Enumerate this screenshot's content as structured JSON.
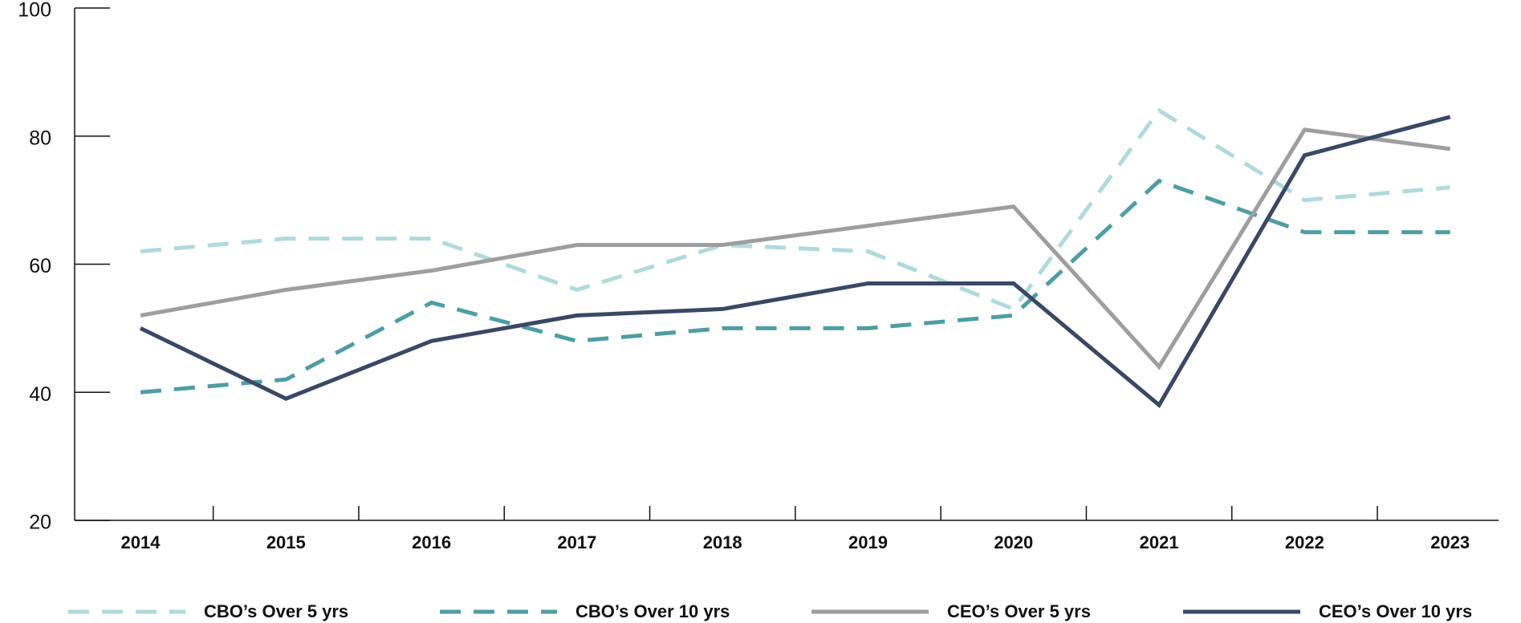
{
  "chart_data": {
    "type": "line",
    "categories": [
      "2014",
      "2015",
      "2016",
      "2017",
      "2018",
      "2019",
      "2020",
      "2021",
      "2022",
      "2023"
    ],
    "series": [
      {
        "name": "CBO’s Over 5 yrs",
        "color": "#b0dadb",
        "style": "dashed",
        "values": [
          62,
          64,
          64,
          56,
          63,
          62,
          53,
          84,
          70,
          72
        ]
      },
      {
        "name": "CBO’s Over 10 yrs",
        "color": "#4e9ea3",
        "style": "dashed",
        "values": [
          40,
          42,
          54,
          48,
          50,
          50,
          52,
          73,
          65,
          65
        ]
      },
      {
        "name": "CEO’s Over 5 yrs",
        "color": "#9e9e9f",
        "style": "solid",
        "values": [
          52,
          56,
          59,
          63,
          63,
          66,
          69,
          44,
          81,
          78
        ]
      },
      {
        "name": "CEO’s Over 10 yrs",
        "color": "#3a4864",
        "style": "solid",
        "values": [
          50,
          39,
          48,
          52,
          53,
          57,
          57,
          38,
          77,
          83
        ]
      }
    ],
    "ylim": [
      20,
      100
    ],
    "yticks": [
      20,
      40,
      60,
      80,
      100
    ],
    "legend": "bottom"
  }
}
